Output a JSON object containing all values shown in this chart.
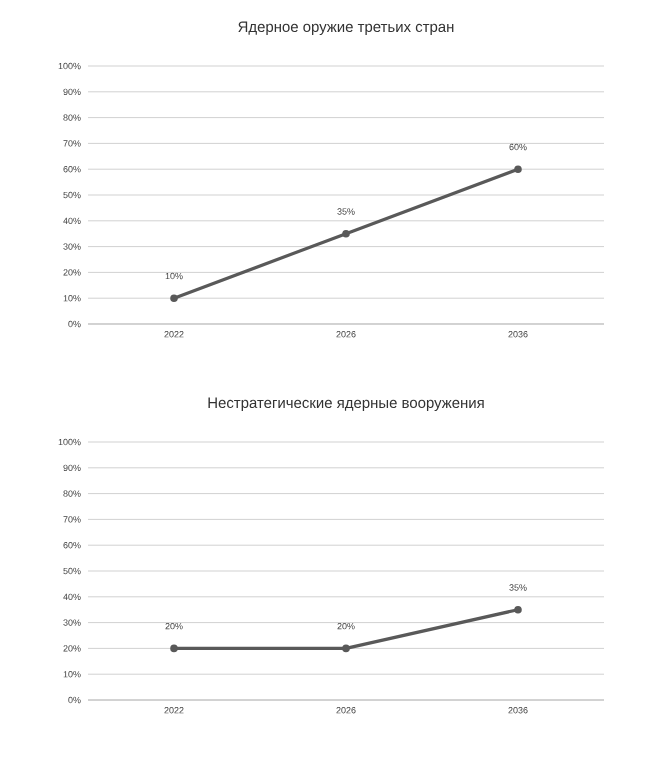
{
  "chart_data": [
    {
      "type": "line",
      "title": "Ядерное оружие третьих стран",
      "categories": [
        "2022",
        "2026",
        "2036"
      ],
      "series": [
        {
          "color": "#595959",
          "values": [
            10,
            35,
            60
          ],
          "value_labels": [
            "10%",
            "35%",
            "60%"
          ]
        }
      ],
      "ylim": [
        0,
        100
      ],
      "yticks": [
        {
          "value": 0,
          "label": "0%"
        },
        {
          "value": 10,
          "label": "10%"
        },
        {
          "value": 20,
          "label": "20%"
        },
        {
          "value": 30,
          "label": "30%"
        },
        {
          "value": 40,
          "label": "40%"
        },
        {
          "value": 50,
          "label": "50%"
        },
        {
          "value": 60,
          "label": "60%"
        },
        {
          "value": 70,
          "label": "70%"
        },
        {
          "value": 80,
          "label": "80%"
        },
        {
          "value": 90,
          "label": "90%"
        },
        {
          "value": 100,
          "label": "100%"
        }
      ],
      "grid": "y",
      "marker": "circle",
      "line_style": "solid"
    },
    {
      "type": "line",
      "title": "Нестратегические ядерные вооружения",
      "categories": [
        "2022",
        "2026",
        "2036"
      ],
      "series": [
        {
          "color": "#595959",
          "values": [
            20,
            20,
            35
          ],
          "value_labels": [
            "20%",
            "20%",
            "35%"
          ]
        }
      ],
      "ylim": [
        0,
        100
      ],
      "yticks": [
        {
          "value": 0,
          "label": "0%"
        },
        {
          "value": 10,
          "label": "10%"
        },
        {
          "value": 20,
          "label": "20%"
        },
        {
          "value": 30,
          "label": "30%"
        },
        {
          "value": 40,
          "label": "40%"
        },
        {
          "value": 50,
          "label": "50%"
        },
        {
          "value": 60,
          "label": "60%"
        },
        {
          "value": 70,
          "label": "70%"
        },
        {
          "value": 80,
          "label": "80%"
        },
        {
          "value": 90,
          "label": "90%"
        },
        {
          "value": 100,
          "label": "100%"
        }
      ],
      "grid": "y",
      "marker": "circle",
      "line_style": "solid"
    }
  ]
}
